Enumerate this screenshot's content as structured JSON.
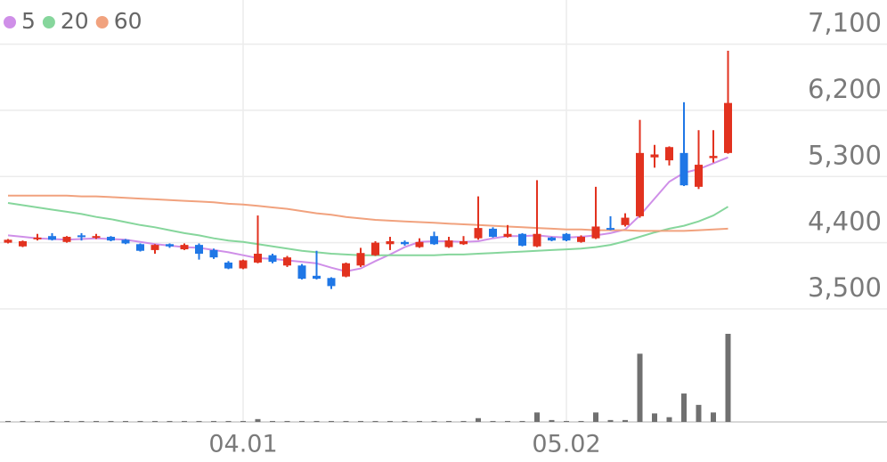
{
  "chart_data": {
    "type": "candlestick",
    "categories": [
      null,
      null,
      null,
      null,
      null,
      null,
      null,
      null,
      null,
      null,
      null,
      null,
      null,
      null,
      null,
      null,
      "04.01",
      null,
      null,
      null,
      null,
      null,
      null,
      null,
      null,
      null,
      null,
      null,
      null,
      null,
      null,
      null,
      null,
      null,
      null,
      null,
      null,
      null,
      "05.02",
      null,
      null,
      null,
      null,
      null,
      null,
      null,
      null,
      null,
      null,
      null
    ],
    "open": [
      4400,
      4350,
      4450,
      4490,
      4410,
      4500,
      4470,
      4480,
      4440,
      4380,
      4300,
      4380,
      4310,
      4370,
      4300,
      4130,
      4050,
      4130,
      4230,
      4090,
      4090,
      3950,
      3920,
      3940,
      4090,
      4230,
      4380,
      4410,
      4340,
      4490,
      4340,
      4380,
      4460,
      4590,
      4480,
      4520,
      4350,
      4470,
      4520,
      4410,
      4460,
      4600,
      4640,
      4760,
      5560,
      5520,
      5620,
      5160,
      5550,
      5620
    ],
    "high": [
      4450,
      4430,
      4520,
      4530,
      4490,
      4530,
      4520,
      4490,
      4450,
      4390,
      4380,
      4390,
      4390,
      4390,
      4320,
      4150,
      4170,
      4770,
      4250,
      4220,
      4110,
      4290,
      3930,
      4130,
      4330,
      4420,
      4480,
      4430,
      4460,
      4550,
      4480,
      4490,
      5030,
      4610,
      4640,
      4530,
      5250,
      4480,
      4530,
      4500,
      5160,
      4760,
      4800,
      6070,
      5730,
      5710,
      6310,
      5930,
      5930,
      7010
    ],
    "low": [
      4390,
      4340,
      4430,
      4430,
      4400,
      4430,
      4450,
      4420,
      4380,
      4280,
      4250,
      4330,
      4300,
      4170,
      4180,
      4040,
      4040,
      4120,
      4120,
      4070,
      3900,
      3900,
      3770,
      3930,
      4070,
      4220,
      4300,
      4360,
      4330,
      4370,
      4330,
      4370,
      4440,
      4470,
      4470,
      4350,
      4340,
      4420,
      4420,
      4400,
      4450,
      4570,
      4620,
      4740,
      5420,
      5450,
      5170,
      5130,
      5490,
      5610
    ],
    "close": [
      4440,
      4420,
      4470,
      4440,
      4480,
      4480,
      4490,
      4430,
      4390,
      4290,
      4370,
      4350,
      4370,
      4250,
      4200,
      4050,
      4160,
      4250,
      4140,
      4200,
      3910,
      3910,
      3810,
      4120,
      4260,
      4400,
      4420,
      4380,
      4410,
      4380,
      4430,
      4420,
      4600,
      4480,
      4520,
      4360,
      4520,
      4430,
      4430,
      4480,
      4620,
      4580,
      4740,
      5620,
      5600,
      5700,
      5180,
      5460,
      5580,
      6300
    ],
    "up_color": "#e2321f",
    "down_color": "#1f77e6",
    "series": [
      {
        "name": "5",
        "color": "#cf8fe8",
        "values": [
          4500,
          4480,
          4460,
          4450,
          4440,
          4450,
          4460,
          4450,
          4440,
          4410,
          4380,
          4360,
          4340,
          4330,
          4300,
          4270,
          4230,
          4190,
          4180,
          4160,
          4140,
          4120,
          4060,
          4010,
          4050,
          4150,
          4240,
          4340,
          4410,
          4420,
          4420,
          4410,
          4420,
          4460,
          4490,
          4490,
          4500,
          4480,
          4470,
          4480,
          4500,
          4530,
          4580,
          4770,
          5000,
          5230,
          5350,
          5400,
          5480,
          5560
        ]
      },
      {
        "name": "20",
        "color": "#86d69c",
        "values": [
          4940,
          4910,
          4880,
          4850,
          4820,
          4790,
          4750,
          4720,
          4680,
          4640,
          4610,
          4570,
          4530,
          4500,
          4460,
          4430,
          4410,
          4380,
          4350,
          4320,
          4290,
          4270,
          4250,
          4240,
          4230,
          4230,
          4230,
          4230,
          4230,
          4230,
          4240,
          4240,
          4250,
          4260,
          4270,
          4280,
          4290,
          4300,
          4310,
          4320,
          4340,
          4370,
          4420,
          4480,
          4540,
          4590,
          4630,
          4690,
          4770,
          4890
        ]
      },
      {
        "name": "60",
        "color": "#f1a27e",
        "values": [
          5040,
          5040,
          5040,
          5040,
          5040,
          5030,
          5030,
          5020,
          5010,
          5000,
          4990,
          4980,
          4970,
          4960,
          4950,
          4930,
          4920,
          4900,
          4880,
          4860,
          4830,
          4800,
          4780,
          4750,
          4730,
          4710,
          4700,
          4690,
          4680,
          4670,
          4660,
          4650,
          4640,
          4630,
          4620,
          4610,
          4600,
          4590,
          4580,
          4580,
          4570,
          4570,
          4570,
          4560,
          4560,
          4560,
          4560,
          4570,
          4580,
          4590
        ]
      }
    ],
    "volume": {
      "color": "#707070",
      "values": [
        1,
        1,
        1,
        1,
        1,
        1,
        1,
        1,
        1,
        1,
        1,
        1,
        1,
        1,
        1,
        1,
        1,
        3,
        1,
        1,
        1,
        1,
        1,
        1,
        1,
        1,
        1,
        1,
        1,
        1,
        1,
        1,
        4,
        1,
        1,
        1,
        10,
        2,
        1,
        1,
        10,
        2,
        2,
        72,
        9,
        5,
        30,
        18,
        10,
        93
      ]
    },
    "ylim": [
      3500,
      7700
    ],
    "yticks": [
      {
        "value": 3500,
        "label": "3,500"
      },
      {
        "value": 4400,
        "label": "4,400"
      },
      {
        "value": 5300,
        "label": "5,300"
      },
      {
        "value": 6200,
        "label": "6,200"
      },
      {
        "value": 7100,
        "label": "7,100"
      }
    ],
    "grid": true
  }
}
